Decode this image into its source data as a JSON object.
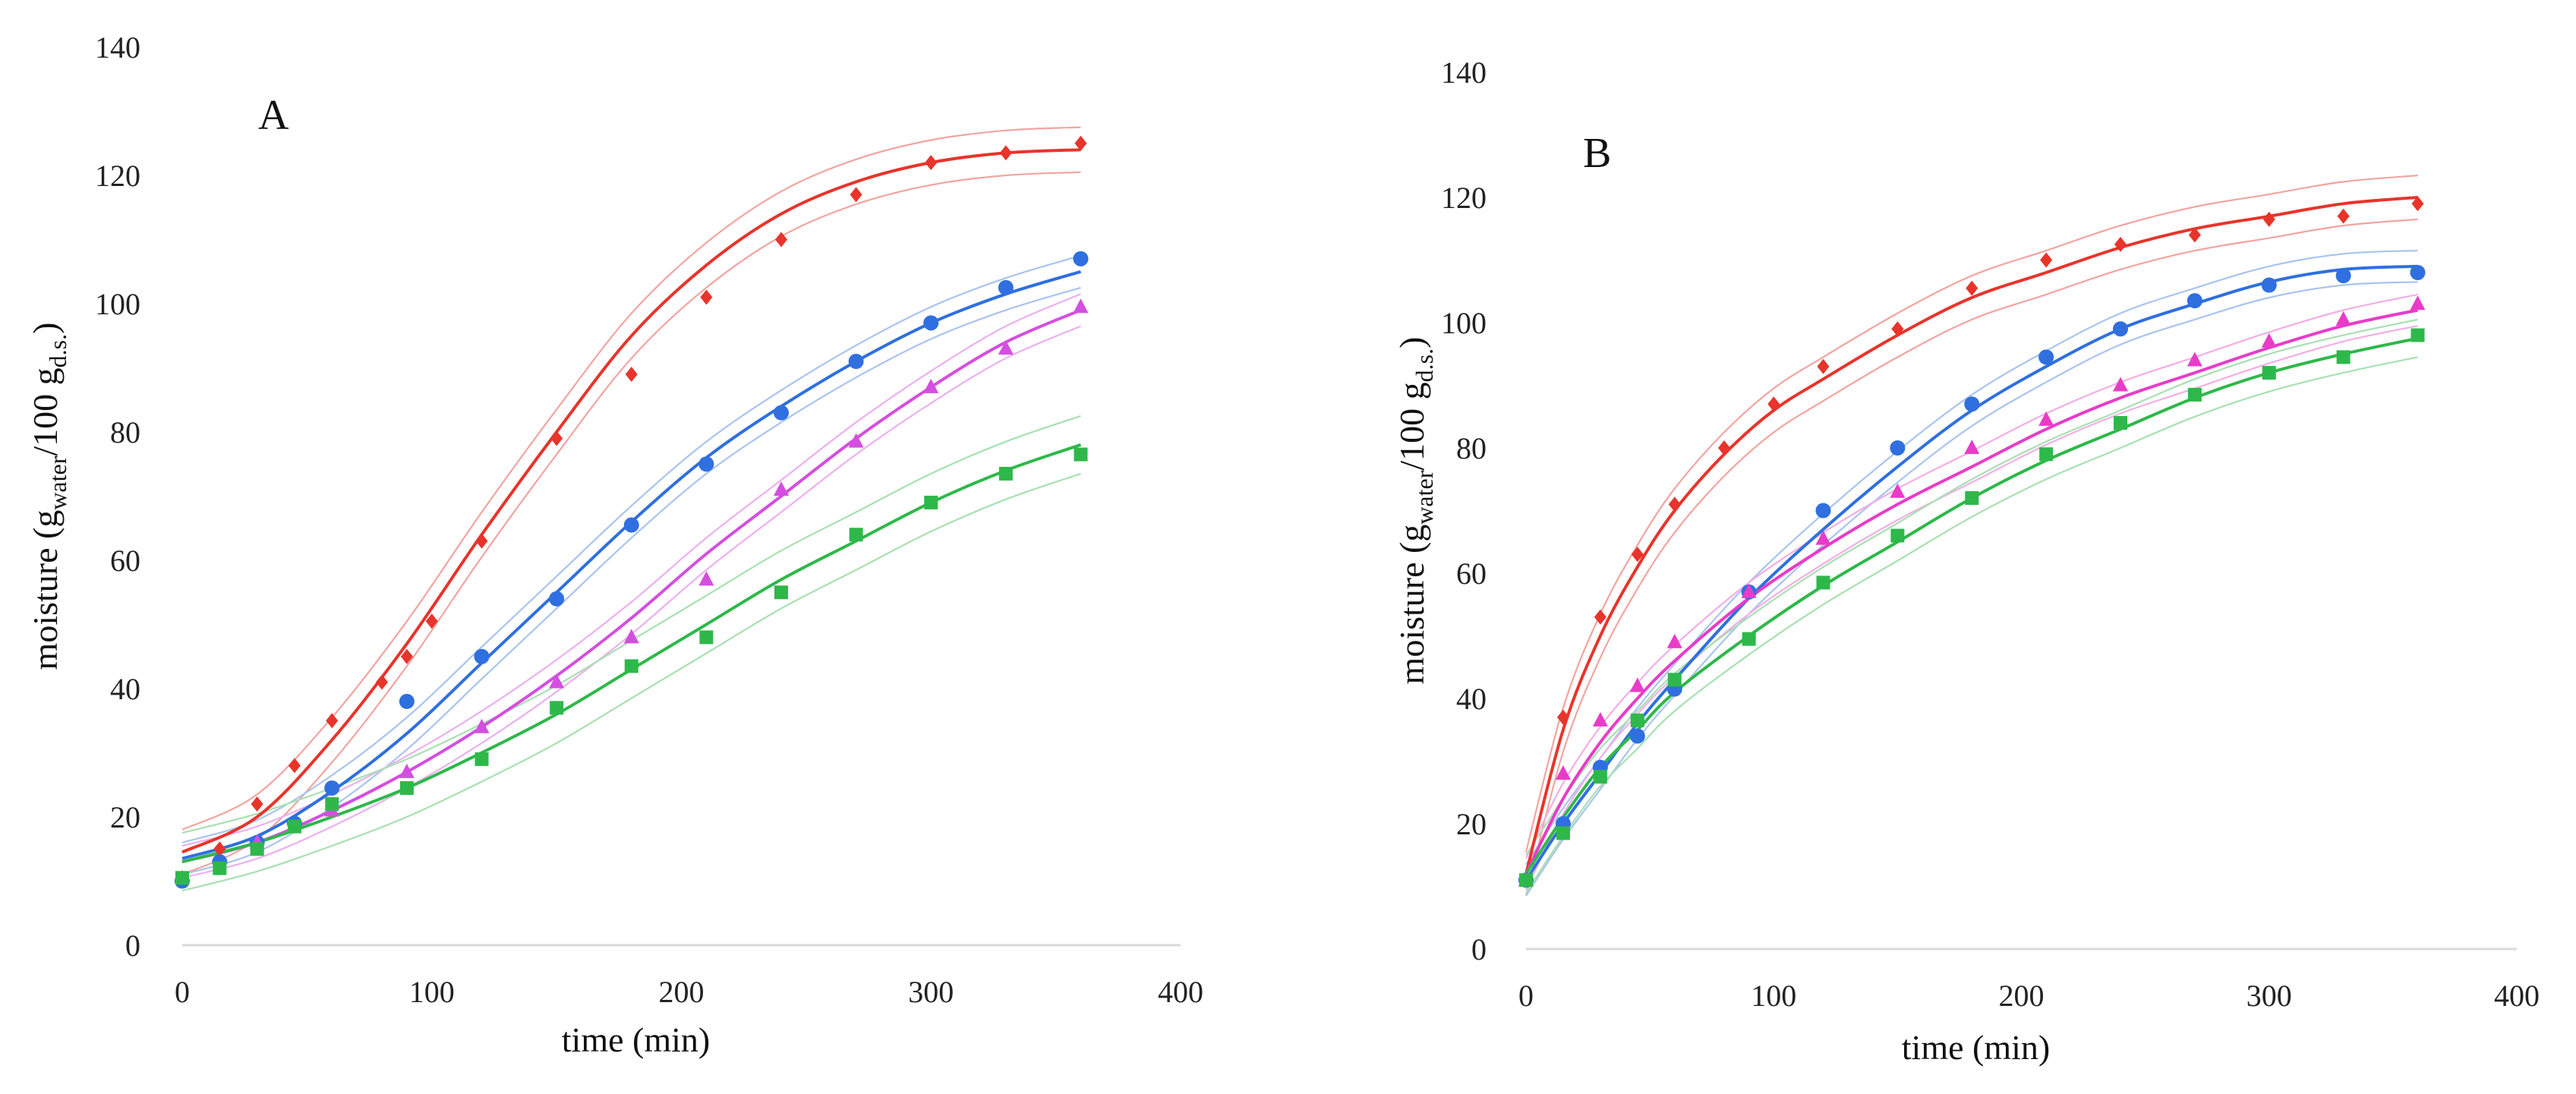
{
  "chart_data": [
    {
      "type": "line",
      "panel_label": "A",
      "xlabel": "time (min)",
      "ylabel": {
        "base": "moisture (g",
        "sub1": "water",
        "mid": "/100 g",
        "sub2": "d.s.",
        "end": ")"
      },
      "xlim": [
        0,
        400
      ],
      "ylim": [
        0,
        140
      ],
      "xticks": [
        "0",
        "100",
        "200",
        "300",
        "400"
      ],
      "yticks": [
        "0",
        "20",
        "40",
        "60",
        "80",
        "100",
        "120",
        "140"
      ],
      "grid": false,
      "series": [
        {
          "name": "red",
          "color": "#e8342b",
          "band_color": "#f2a4a0",
          "marker": "diamond",
          "points": [
            [
              0,
              10.5
            ],
            [
              15,
              15
            ],
            [
              30,
              22
            ],
            [
              45,
              28
            ],
            [
              60,
              35
            ],
            [
              80,
              41
            ],
            [
              90,
              45
            ],
            [
              100,
              50.5
            ],
            [
              120,
              63
            ],
            [
              150,
              79
            ],
            [
              180,
              89
            ],
            [
              210,
              101
            ],
            [
              240,
              110
            ],
            [
              270,
              117
            ],
            [
              300,
              122
            ],
            [
              330,
              123.5
            ],
            [
              360,
              125
            ]
          ],
          "fit": [
            [
              0,
              14.5
            ],
            [
              30,
              20
            ],
            [
              60,
              32
            ],
            [
              90,
              47
            ],
            [
              120,
              64
            ],
            [
              150,
              80
            ],
            [
              180,
              95
            ],
            [
              210,
              106
            ],
            [
              240,
              114
            ],
            [
              270,
              119
            ],
            [
              300,
              122
            ],
            [
              330,
              123.5
            ],
            [
              360,
              124
            ]
          ],
          "band": 3.5
        },
        {
          "name": "blue",
          "color": "#2f6fe0",
          "band_color": "#a9c4ef",
          "marker": "circle",
          "points": [
            [
              0,
              10
            ],
            [
              15,
              13
            ],
            [
              30,
              16
            ],
            [
              45,
              19
            ],
            [
              60,
              24.5
            ],
            [
              90,
              38
            ],
            [
              120,
              45
            ],
            [
              150,
              54
            ],
            [
              180,
              65.5
            ],
            [
              210,
              75
            ],
            [
              240,
              83
            ],
            [
              270,
              91
            ],
            [
              300,
              97
            ],
            [
              330,
              102.5
            ],
            [
              360,
              107
            ]
          ],
          "fit": [
            [
              0,
              13.5
            ],
            [
              30,
              17
            ],
            [
              60,
              24
            ],
            [
              90,
              33
            ],
            [
              120,
              44
            ],
            [
              150,
              55
            ],
            [
              180,
              66
            ],
            [
              210,
              76
            ],
            [
              240,
              84
            ],
            [
              270,
              91
            ],
            [
              300,
              97
            ],
            [
              330,
              101.5
            ],
            [
              360,
              105
            ]
          ],
          "band": 2.5
        },
        {
          "name": "magenta",
          "color": "#d44ee0",
          "band_color": "#ebb0f0",
          "marker": "triangle",
          "points": [
            [
              30,
              16
            ],
            [
              60,
              21
            ],
            [
              90,
              27
            ],
            [
              120,
              34
            ],
            [
              150,
              41
            ],
            [
              180,
              48
            ],
            [
              210,
              57
            ],
            [
              240,
              71
            ],
            [
              270,
              78.5
            ],
            [
              300,
              87
            ],
            [
              330,
              93
            ],
            [
              360,
              99.5
            ]
          ],
          "fit": [
            [
              0,
              13
            ],
            [
              30,
              16
            ],
            [
              60,
              21
            ],
            [
              90,
              27
            ],
            [
              120,
              34
            ],
            [
              150,
              42
            ],
            [
              180,
              51
            ],
            [
              210,
              61
            ],
            [
              240,
              70
            ],
            [
              270,
              79
            ],
            [
              300,
              87
            ],
            [
              330,
              94
            ],
            [
              360,
              99
            ]
          ],
          "band": 2.5
        },
        {
          "name": "green",
          "color": "#2eb84a",
          "band_color": "#a8e0b2",
          "marker": "square",
          "points": [
            [
              0,
              10.5
            ],
            [
              15,
              12
            ],
            [
              30,
              15
            ],
            [
              45,
              18.5
            ],
            [
              60,
              22
            ],
            [
              90,
              24.5
            ],
            [
              120,
              29
            ],
            [
              150,
              37
            ],
            [
              180,
              43.5
            ],
            [
              210,
              48
            ],
            [
              240,
              55
            ],
            [
              270,
              64
            ],
            [
              300,
              69
            ],
            [
              330,
              73.5
            ],
            [
              360,
              76.5
            ]
          ],
          "fit": [
            [
              0,
              13
            ],
            [
              30,
              16
            ],
            [
              60,
              20
            ],
            [
              90,
              24.5
            ],
            [
              120,
              30
            ],
            [
              150,
              36
            ],
            [
              180,
              43
            ],
            [
              210,
              50
            ],
            [
              240,
              57
            ],
            [
              270,
              63
            ],
            [
              300,
              69
            ],
            [
              330,
              74
            ],
            [
              360,
              78
            ]
          ],
          "band": 4.5
        }
      ]
    },
    {
      "type": "line",
      "panel_label": "B",
      "xlabel": "time (min)",
      "ylabel": {
        "base": "moisture (g",
        "sub1": "water",
        "mid": "/100 g",
        "sub2": "d.s.",
        "end": ")"
      },
      "xlim": [
        0,
        400
      ],
      "ylim": [
        0,
        140
      ],
      "xticks": [
        "0",
        "100",
        "200",
        "300",
        "400"
      ],
      "yticks": [
        "0",
        "20",
        "40",
        "60",
        "80",
        "100",
        "120",
        "140"
      ],
      "grid": false,
      "series": [
        {
          "name": "red",
          "color": "#e8342b",
          "band_color": "#f2a4a0",
          "marker": "diamond",
          "points": [
            [
              0,
              11
            ],
            [
              15,
              37
            ],
            [
              30,
              53
            ],
            [
              45,
              63
            ],
            [
              60,
              71
            ],
            [
              80,
              80
            ],
            [
              100,
              87
            ],
            [
              120,
              93
            ],
            [
              150,
              99
            ],
            [
              180,
              105.5
            ],
            [
              210,
              110
            ],
            [
              240,
              112.5
            ],
            [
              270,
              114
            ],
            [
              300,
              116.5
            ],
            [
              330,
              117
            ],
            [
              360,
              119
            ]
          ],
          "fit": [
            [
              0,
              12
            ],
            [
              15,
              35
            ],
            [
              30,
              50
            ],
            [
              45,
              61
            ],
            [
              60,
              70
            ],
            [
              80,
              79
            ],
            [
              100,
              86
            ],
            [
              120,
              91
            ],
            [
              150,
              98
            ],
            [
              180,
              104
            ],
            [
              210,
              108
            ],
            [
              240,
              112
            ],
            [
              270,
              115
            ],
            [
              300,
              117
            ],
            [
              330,
              119
            ],
            [
              360,
              120
            ]
          ],
          "band": 3.5
        },
        {
          "name": "blue",
          "color": "#2f6fe0",
          "band_color": "#a9c4ef",
          "marker": "circle",
          "points": [
            [
              0,
              11
            ],
            [
              15,
              20
            ],
            [
              30,
              29
            ],
            [
              45,
              34
            ],
            [
              60,
              41.5
            ],
            [
              90,
              57
            ],
            [
              120,
              70
            ],
            [
              150,
              80
            ],
            [
              180,
              87
            ],
            [
              210,
              94.5
            ],
            [
              240,
              99
            ],
            [
              270,
              103.5
            ],
            [
              300,
              106
            ],
            [
              330,
              107.5
            ],
            [
              360,
              108
            ]
          ],
          "fit": [
            [
              0,
              11
            ],
            [
              15,
              20
            ],
            [
              30,
              28
            ],
            [
              45,
              36
            ],
            [
              60,
              43
            ],
            [
              90,
              56
            ],
            [
              120,
              67
            ],
            [
              150,
              77
            ],
            [
              180,
              86
            ],
            [
              210,
              93
            ],
            [
              240,
              99
            ],
            [
              270,
              103
            ],
            [
              300,
              106.5
            ],
            [
              330,
              108.5
            ],
            [
              360,
              109
            ]
          ],
          "band": 2.5
        },
        {
          "name": "magenta",
          "color": "#e83cc8",
          "band_color": "#f3aee5",
          "marker": "triangle",
          "points": [
            [
              0,
              11
            ],
            [
              15,
              28
            ],
            [
              30,
              36.5
            ],
            [
              45,
              42
            ],
            [
              60,
              49
            ],
            [
              90,
              57
            ],
            [
              120,
              65.5
            ],
            [
              150,
              73
            ],
            [
              180,
              80
            ],
            [
              210,
              84.5
            ],
            [
              240,
              90
            ],
            [
              270,
              94
            ],
            [
              300,
              97
            ],
            [
              330,
              100.5
            ],
            [
              360,
              103
            ]
          ],
          "fit": [
            [
              0,
              12
            ],
            [
              15,
              24
            ],
            [
              30,
              33
            ],
            [
              45,
              40
            ],
            [
              60,
              46
            ],
            [
              90,
              56
            ],
            [
              120,
              64
            ],
            [
              150,
              71
            ],
            [
              180,
              77
            ],
            [
              210,
              83
            ],
            [
              240,
              88
            ],
            [
              270,
              92
            ],
            [
              300,
              96
            ],
            [
              330,
              99.5
            ],
            [
              360,
              102
            ]
          ],
          "band": 2.5
        },
        {
          "name": "green",
          "color": "#2eb84a",
          "band_color": "#a8e0b2",
          "marker": "square",
          "points": [
            [
              0,
              11
            ],
            [
              15,
              18.5
            ],
            [
              30,
              27.5
            ],
            [
              45,
              36.5
            ],
            [
              60,
              43
            ],
            [
              90,
              49.5
            ],
            [
              120,
              58.5
            ],
            [
              150,
              66
            ],
            [
              180,
              72
            ],
            [
              210,
              79
            ],
            [
              240,
              84
            ],
            [
              270,
              88.5
            ],
            [
              300,
              92
            ],
            [
              330,
              94.5
            ],
            [
              360,
              98
            ]
          ],
          "fit": [
            [
              0,
              12
            ],
            [
              15,
              21
            ],
            [
              30,
              29
            ],
            [
              45,
              35
            ],
            [
              60,
              41
            ],
            [
              90,
              50
            ],
            [
              120,
              58
            ],
            [
              150,
              65
            ],
            [
              180,
              72
            ],
            [
              210,
              78
            ],
            [
              240,
              83
            ],
            [
              270,
              88
            ],
            [
              300,
              92
            ],
            [
              330,
              95
            ],
            [
              360,
              97.5
            ]
          ],
          "band": 3
        }
      ]
    }
  ]
}
